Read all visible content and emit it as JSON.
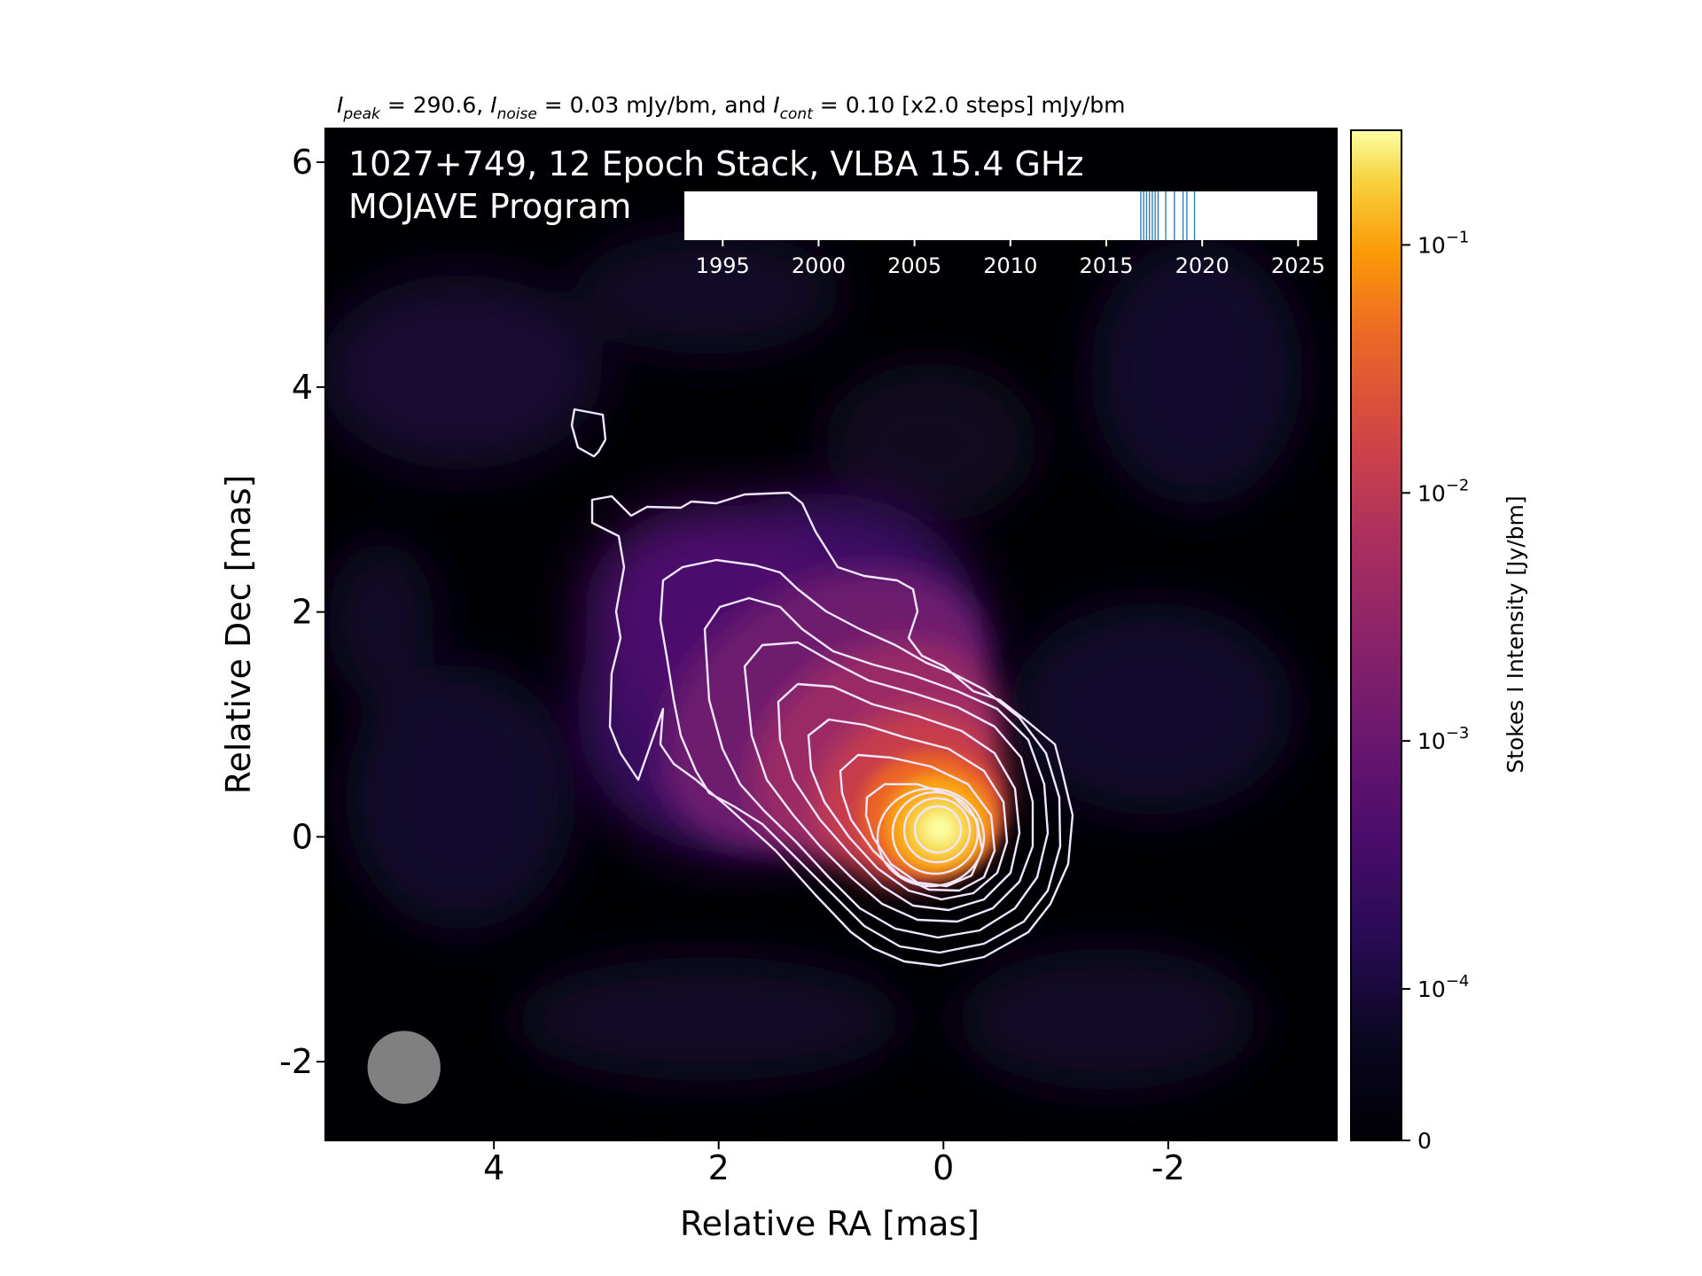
{
  "figure": {
    "header_parts": {
      "peak_label": "I",
      "peak_sub": "peak",
      "peak_value": " = 290.6, ",
      "noise_label": "I",
      "noise_sub": "noise",
      "noise_value": " = 0.03 mJy/bm, and ",
      "cont_label": "I",
      "cont_sub": "cont",
      "cont_value": " = 0.10 [x2.0 steps] mJy/bm"
    },
    "title_line1": "1027+749, 12 Epoch Stack, VLBA 15.4 GHz",
    "title_line2": "MOJAVE Program"
  },
  "chart_data": [
    {
      "type": "heatmap",
      "xlabel": "Relative RA [mas]",
      "ylabel": "Relative Dec [mas]",
      "xlim": [
        5.5,
        -3.5
      ],
      "ylim": [
        -2.7,
        6.3
      ],
      "x_ticks": [
        4,
        2,
        0,
        -2
      ],
      "y_ticks": [
        -2,
        0,
        2,
        4,
        6
      ],
      "x_tick_labels": [
        "4",
        "2",
        "0",
        "-2"
      ],
      "y_tick_labels": [
        "-2",
        "0",
        "2",
        "4",
        "6"
      ],
      "colormap": "inferno",
      "contour_color": "#f0e6ff",
      "core": {
        "ra": 0.0,
        "dec": 0.0
      },
      "jet_direction": "north-east",
      "beam": {
        "ra": 4.8,
        "dec": -2.05,
        "diameter_mas": 0.65,
        "color": "#808080"
      },
      "colorbar": {
        "label": "Stokes I Intensity [Jy/bm]",
        "ticks": [
          0,
          0.0001,
          0.001,
          0.01,
          0.1
        ],
        "tick_labels": [
          "0",
          "10^-4",
          "10^-3",
          "10^-2",
          "10^-1"
        ],
        "vmax": 0.29
      }
    },
    {
      "type": "scatter",
      "description_role": "epoch timeline inset",
      "xlim": [
        1993,
        2026
      ],
      "x_ticks": [
        1995,
        2000,
        2005,
        2010,
        2015,
        2020,
        2025
      ],
      "x_tick_labels": [
        "1995",
        "2000",
        "2005",
        "2010",
        "2015",
        "2020",
        "2025"
      ],
      "epochs": [
        2016.8,
        2016.95,
        2017.1,
        2017.25,
        2017.4,
        2017.55,
        2017.7,
        2018.1,
        2018.55,
        2019.0,
        2019.2,
        2019.6
      ],
      "line_color": "#1f77b4"
    }
  ]
}
